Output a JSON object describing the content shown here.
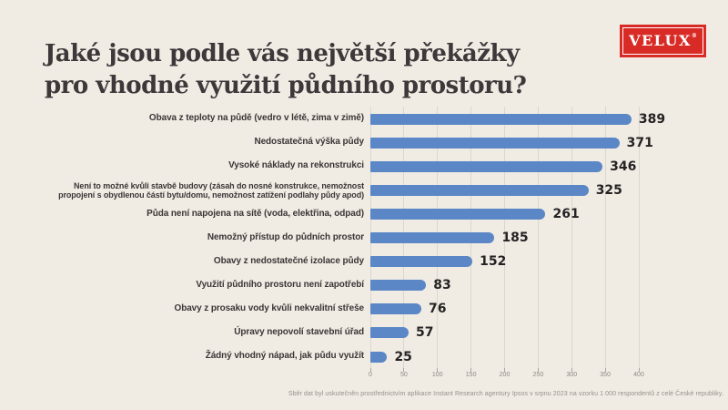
{
  "slide": {
    "background": "#F0ECE4",
    "title_line1": "Jaké jsou podle vás největší překážky",
    "title_line2": "pro vhodné využití půdního prostoru?",
    "source_note": "Sběr dat byl uskutečněn prostřednictvím aplikace Instant Research agentury Ipsos v srpnu 2023 na vzorku 1 000 respondentů z celé České republiky."
  },
  "logo": {
    "text": "VELUX",
    "registered_mark": "®",
    "background_color": "#D92B26",
    "text_color": "#FFFFFF"
  },
  "chart_data": {
    "type": "bar",
    "orientation": "horizontal",
    "title": "Jaké jsou podle vás největší překážky pro vhodné využití půdního prostoru?",
    "categories": [
      "Obava z teploty na půdě (vedro v létě, zima v zimě)",
      "Nedostatečná výška půdy",
      "Vysoké náklady na rekonstrukci",
      "Není to možné kvůli stavbě budovy (zásah do nosné konstrukce, nemožnost propojení s obydlenou částí bytu/domu, nemožnost zatížení podlahy půdy apod)",
      "Půda není napojena na sítě (voda, elektřina, odpad)",
      "Nemožný přístup do půdních prostor",
      "Obavy z nedostatečné izolace půdy",
      "Využití půdního prostoru není zapotřebí",
      "Obavy z prosaku vody kvůli nekvalitní střeše",
      "Úpravy nepovolí stavební úřad",
      "Žádný vhodný nápad, jak půdu využít"
    ],
    "values": [
      389,
      371,
      346,
      325,
      261,
      185,
      152,
      83,
      76,
      57,
      25
    ],
    "x_ticks": [
      0,
      50,
      100,
      150,
      200,
      250,
      300,
      350,
      400
    ],
    "xlim": [
      0,
      400
    ],
    "xlabel": "",
    "ylabel": "",
    "bar_color": "#5B87C6",
    "gridline_color": "#DBD6CE",
    "grid": true,
    "value_labels": true,
    "legend": "none"
  }
}
